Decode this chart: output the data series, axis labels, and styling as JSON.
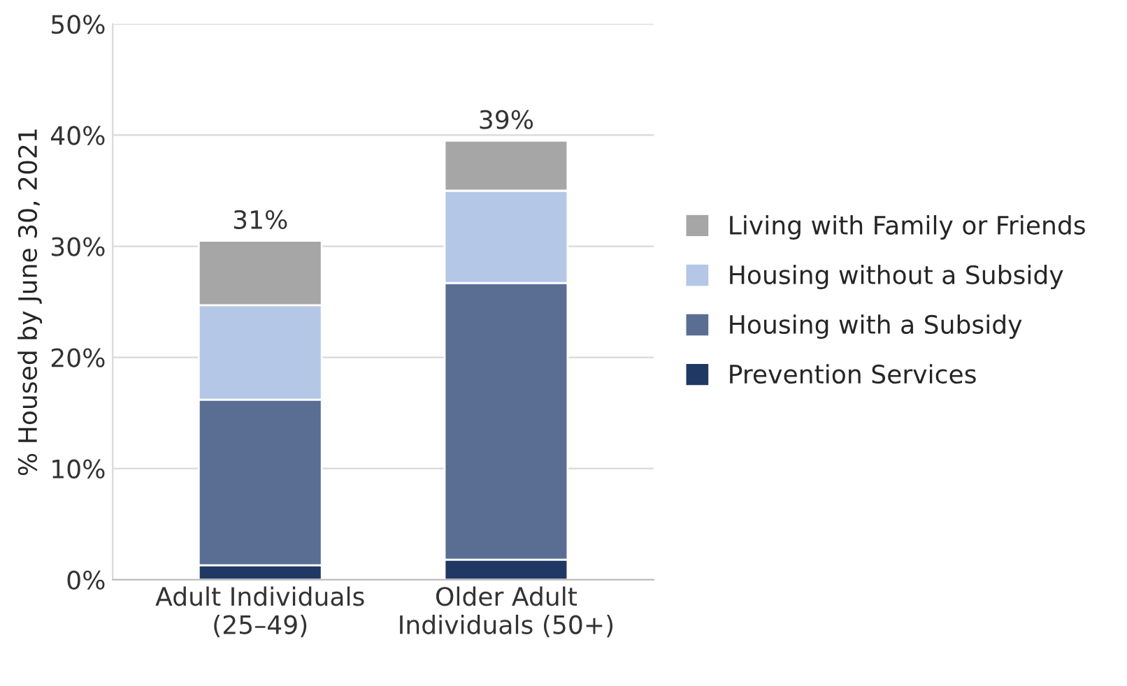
{
  "chart_data": {
    "type": "bar",
    "stacked": true,
    "ylabel": "% Housed by June 30, 2021",
    "categories": [
      "Adult Individuals\n(25–49)",
      "Older Adult\nIndividuals (50+)"
    ],
    "series": [
      {
        "name": "Prevention Services",
        "color": "#203864",
        "values": [
          1.3,
          1.8
        ]
      },
      {
        "name": "Housing with a Subsidy",
        "color": "#5a6e94",
        "values": [
          14.9,
          24.9
        ]
      },
      {
        "name": "Housing without a Subsidy",
        "color": "#b4c7e7",
        "values": [
          8.5,
          8.3
        ]
      },
      {
        "name": "Living with Family or Friends",
        "color": "#a6a6a6",
        "values": [
          5.8,
          4.5
        ]
      }
    ],
    "totals": [
      "31%",
      "39%"
    ],
    "ylim": [
      0,
      50
    ],
    "yticks": [
      {
        "value": 0,
        "label": "0%"
      },
      {
        "value": 10,
        "label": "10%"
      },
      {
        "value": 20,
        "label": "20%"
      },
      {
        "value": 30,
        "label": "30%"
      },
      {
        "value": 40,
        "label": "40%"
      },
      {
        "value": 50,
        "label": "50%"
      }
    ],
    "grid": "y",
    "legend": "right"
  }
}
